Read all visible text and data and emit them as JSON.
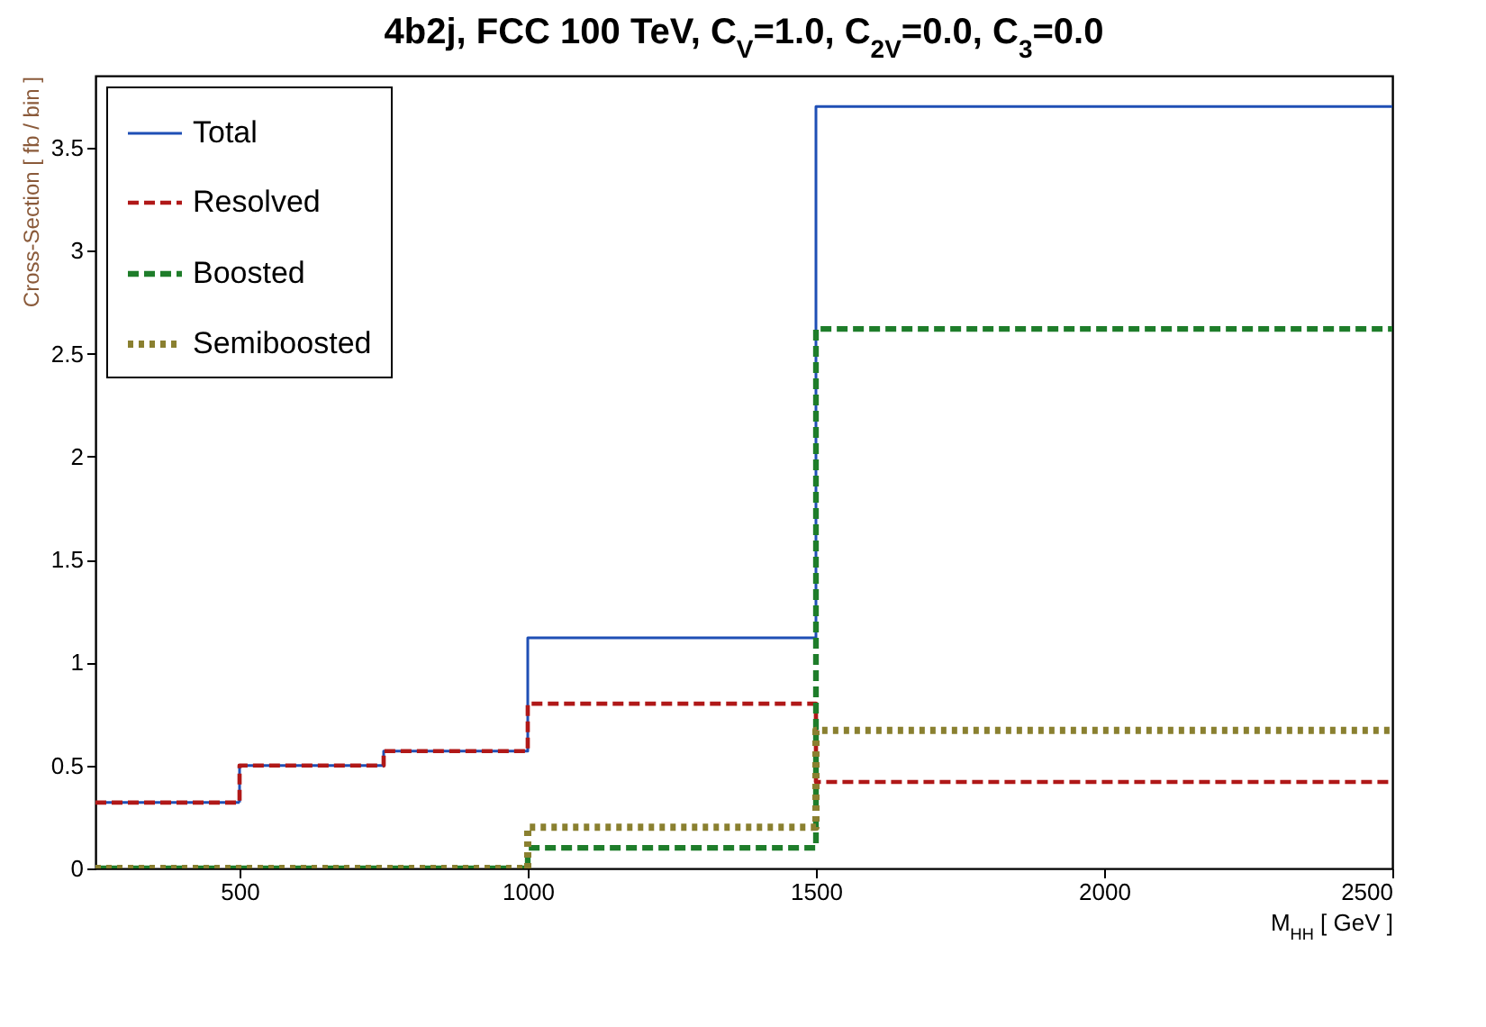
{
  "chart_data": {
    "type": "histogram",
    "title": "4b2j, FCC 100 TeV, C$_{V}$=1.0, C$_{2V}$=0.0, C$_{3}$=0.0",
    "xlabel": "M$_{HH}$ [ GeV ]",
    "ylabel": "Cross-Section [ fb / bin ]",
    "bins": [
      250,
      500,
      750,
      1000,
      1500,
      2500
    ],
    "series": [
      {
        "name": "Total",
        "color": "#1f4fb5",
        "line_style": "solid",
        "values": [
          0.32,
          0.5,
          0.57,
          1.12,
          3.7
        ]
      },
      {
        "name": "Resolved",
        "color": "#b01818",
        "line_style": "dashed",
        "values": [
          0.32,
          0.5,
          0.57,
          0.8,
          0.42
        ]
      },
      {
        "name": "Boosted",
        "color": "#1e7d2a",
        "line_style": "dashed",
        "values": [
          0,
          0,
          0,
          0.1,
          2.62
        ]
      },
      {
        "name": "Semiboosted",
        "color": "#8a8030",
        "line_style": "dotted",
        "values": [
          0,
          0,
          0,
          0.2,
          0.67
        ]
      }
    ],
    "xlim": [
      250,
      2500
    ],
    "xticks": [
      500,
      1000,
      1500,
      2000,
      2500
    ],
    "ylim": [
      0,
      3.85
    ],
    "yticks": [
      0,
      0.5,
      1,
      1.5,
      2,
      2.5,
      3,
      3.5
    ],
    "grid": false,
    "legend": "top left"
  }
}
